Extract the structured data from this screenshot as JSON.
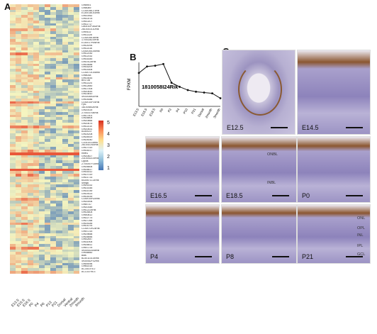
{
  "panels": {
    "a": "A",
    "b": "B",
    "c": "C"
  },
  "heatmap": {
    "genes": [
      "Gm8901",
      "Gm8089",
      "C130036L21Rik",
      "E130018O16Rik",
      "Gm10062",
      "Gm10078",
      "Gm10207",
      "Gm11717",
      "C80010P0ADRik",
      "2810010L10Rik",
      "Gm9102",
      "Gm11326",
      "C230035I16Rik",
      "1700028J19Rik",
      "E130017H06Rik",
      "Gm14094",
      "Gm11416",
      "C530030D05Rik",
      "Gm12030",
      "Gm12032",
      "Gm16345",
      "Gm19125Rik",
      "Gm15488",
      "Gm16209",
      "Gm15306",
      "C130073O08Rik",
      "Gm8038",
      "Gm15444",
      "B9173d",
      "Gm11324",
      "Gm12850",
      "Gm17005",
      "Gm20444",
      "Gm23810",
      "4933436I02Rik",
      "Gm15088",
      "C030010F04Rik",
      "Fyt1",
      "1810058I24Rik",
      "Gm20025",
      "2700037I06Rik",
      "Gm17501",
      "Gm26805",
      "Gm20866",
      "Gm20675",
      "Gm11410",
      "Gm20831",
      "A330023",
      "Gm24208",
      "Gm26929",
      "Gm25040",
      "C10019J16Rik",
      "2610410I16Rik",
      "Gm17019",
      "Gm16017",
      "Rbet1",
      "Gm20827",
      "2310002L09Rik",
      "Lppos",
      "2700057F16Rik",
      "Gm26606",
      "Gm26617",
      "Gm16312",
      "Gm27019",
      "Gm21733",
      "6430571L14Rik",
      "Snhg6",
      "Gm21432",
      "Gm21448",
      "Gm16789",
      "Gm19023",
      "Gm15039",
      "C330010R24Rik",
      "Gm20006",
      "Gm8710",
      "Gm20348",
      "Gm12224Rik",
      "Gm14604",
      "Gm40612",
      "Gm22775",
      "Gm27268",
      "Gm25185",
      "Gm21076",
      "C130072K24Rik",
      "Gm47215",
      "Gm29858",
      "Gm26856",
      "Gm42847",
      "Gm31905",
      "Gm26811",
      "Gm47278",
      "4930402D08Rik",
      "Gm36660",
      "Bsfs",
      "B230110L04Rik",
      "4930452F02Rik",
      "Gm49096",
      "Gm61418",
      "AC161076.2",
      "AC133795.3"
    ],
    "columns": [
      "E13.5",
      "E15.5",
      "E18.5",
      "P0",
      "P4",
      "P6",
      "P13",
      "P21",
      "Dorsal",
      "Ventral",
      "2month",
      "3month"
    ],
    "colorbar_ticks": [
      "5",
      "4",
      "3",
      "2",
      "1"
    ],
    "low_color": "#2c64b5",
    "mid_color": "#f5f5c0",
    "high_color": "#e8462c"
  },
  "chart_data": {
    "type": "line",
    "title": "1810058I24Rik",
    "xlabel": "",
    "ylabel": "FPKM",
    "ylim": [
      0,
      27
    ],
    "categories": [
      "E13.5",
      "E15.5",
      "E18.5",
      "P0",
      "P2",
      "P4",
      "P10",
      "P21",
      "Dorsal",
      "2month",
      "3month"
    ],
    "series": [
      {
        "values": [
          20.5,
          24.5,
          25,
          26,
          14.5,
          12,
          10,
          9,
          8.5,
          8,
          5
        ]
      }
    ]
  },
  "micrographs": [
    {
      "label": "E12.5"
    },
    {
      "label": "E14.5"
    },
    {
      "label": "E16.5"
    },
    {
      "label": "E18.5",
      "layers": [
        "ONBL",
        "INBL"
      ]
    },
    {
      "label": "P0"
    },
    {
      "label": "P4"
    },
    {
      "label": "P8"
    },
    {
      "label": "P21",
      "layers": [
        "ONL",
        "OPL",
        "INL",
        "IPL",
        "GCL"
      ]
    }
  ]
}
